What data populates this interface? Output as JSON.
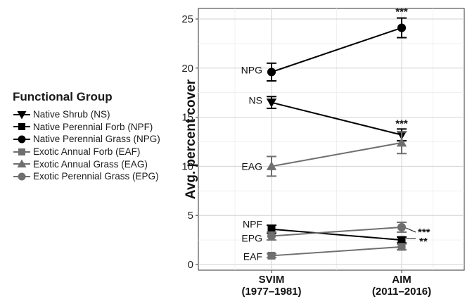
{
  "legend": {
    "title": "Functional Group",
    "items": [
      {
        "label": "Native Shrub (NS)",
        "color": "#000000",
        "marker": "triangle-down"
      },
      {
        "label": "Native Perennial Forb (NPF)",
        "color": "#000000",
        "marker": "square"
      },
      {
        "label": "Native Perennial Grass (NPG)",
        "color": "#000000",
        "marker": "circle"
      },
      {
        "label": "Exotic Annual Forb (EAF)",
        "color": "#6f6f6f",
        "marker": "square"
      },
      {
        "label": "Exotic Annual Grass (EAG)",
        "color": "#6f6f6f",
        "marker": "triangle-up"
      },
      {
        "label": "Exotic Perennial Grass (EPG)",
        "color": "#6f6f6f",
        "marker": "circle"
      }
    ]
  },
  "chart_data": {
    "type": "line",
    "ylabel": "Avg. percent cover",
    "ylim": [
      0,
      26
    ],
    "yticks": [
      0,
      5,
      10,
      15,
      20,
      25
    ],
    "categories": [
      {
        "line1": "SVIM",
        "line2": "(1977–1981)"
      },
      {
        "line1": "AIM",
        "line2": "(2011–2016)"
      }
    ],
    "grid": true,
    "legend_position": "left",
    "series": [
      {
        "name": "NPG",
        "color": "#000000",
        "marker": "circle",
        "values": [
          19.6,
          24.1
        ],
        "errors": [
          0.9,
          1.0
        ],
        "label": "NPG",
        "significance": "***"
      },
      {
        "name": "NS",
        "color": "#000000",
        "marker": "triangle-down",
        "values": [
          16.5,
          13.2
        ],
        "errors": [
          0.6,
          0.6
        ],
        "label": "NS",
        "significance": "***"
      },
      {
        "name": "EAG",
        "color": "#6f6f6f",
        "marker": "triangle-up",
        "values": [
          10.0,
          12.4
        ],
        "errors": [
          1.0,
          1.1
        ],
        "label": "EAG",
        "significance": ""
      },
      {
        "name": "NPF",
        "color": "#000000",
        "marker": "square",
        "values": [
          3.6,
          2.5
        ],
        "errors": [
          0.4,
          0.3
        ],
        "label": "NPF",
        "significance": "**"
      },
      {
        "name": "EPG",
        "color": "#6f6f6f",
        "marker": "circle",
        "values": [
          2.9,
          3.8
        ],
        "errors": [
          0.4,
          0.5
        ],
        "label": "EPG",
        "significance": "***"
      },
      {
        "name": "EAF",
        "color": "#6f6f6f",
        "marker": "square",
        "values": [
          0.9,
          1.8
        ],
        "errors": [
          0.2,
          0.3
        ],
        "label": "EAF",
        "significance": ""
      }
    ]
  }
}
